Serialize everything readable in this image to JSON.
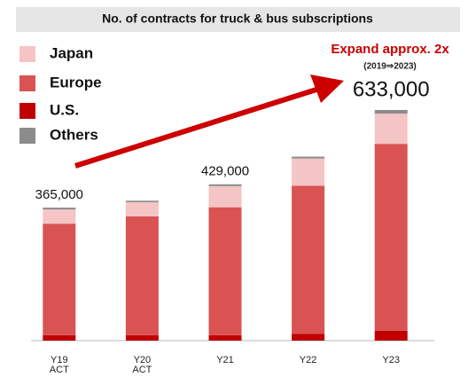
{
  "chart_data": {
    "type": "bar",
    "stacked": true,
    "title": "No. of contracts for truck & bus subscriptions",
    "categories": [
      "Y19 ACT",
      "Y20 ACT",
      "Y21",
      "Y22",
      "Y23"
    ],
    "series": [
      {
        "name": "Japan",
        "color": "#f5c4c4",
        "values": [
          39000,
          39000,
          58000,
          75000,
          83000
        ]
      },
      {
        "name": "Europe",
        "color": "#d95353",
        "values": [
          306000,
          326000,
          351000,
          406000,
          513000
        ]
      },
      {
        "name": "U.S.",
        "color": "#c00000",
        "values": [
          15000,
          15000,
          15000,
          19000,
          27000
        ]
      },
      {
        "name": "Others",
        "color": "#8c8c8c",
        "values": [
          5000,
          4000,
          5000,
          5000,
          10000
        ]
      }
    ],
    "total_labels": [
      "365,000",
      null,
      "429,000",
      null,
      "633,000"
    ],
    "annotations": [
      "Expand approx. 2x",
      "(2019⇒2023)"
    ],
    "ylim": [
      0,
      650000
    ],
    "legend": "top-left"
  }
}
